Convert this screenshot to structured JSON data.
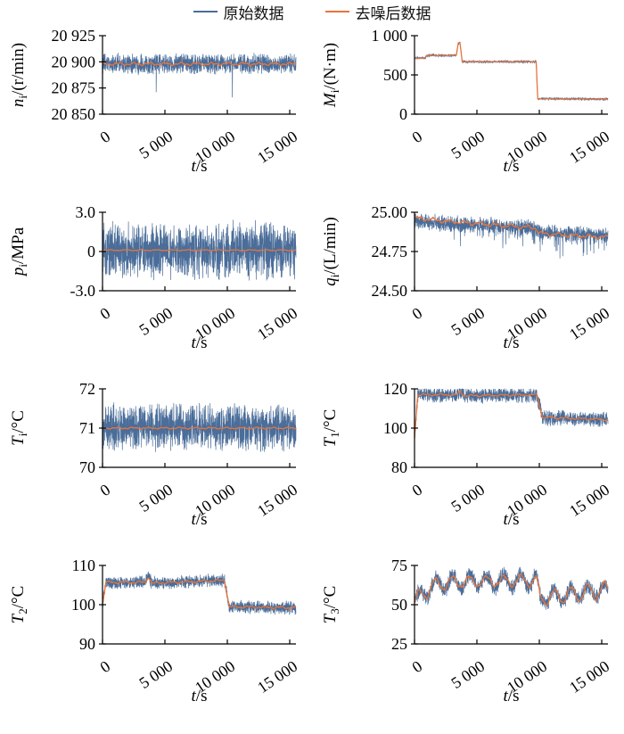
{
  "legend": {
    "raw_label": "原始数据",
    "denoised_label": "去噪后数据"
  },
  "colors": {
    "raw": "#4a6d99",
    "denoised": "#e8743a",
    "axis": "#000000"
  },
  "chart_data": {
    "type": "line",
    "layout": "4x2-grid",
    "legend_position": "top-center",
    "series_names": [
      "原始数据",
      "去噪后数据"
    ],
    "xlabel": {
      "v": "t",
      "unit": "/s"
    },
    "xlim": [
      0,
      15500
    ],
    "xticks": [
      {
        "v": 0,
        "t": "0"
      },
      {
        "v": 5000,
        "t": "5 000"
      },
      {
        "v": 10000,
        "t": "10 000"
      },
      {
        "v": 15000,
        "t": "15 000"
      }
    ],
    "charts": [
      {
        "key": "ni",
        "ylabel": {
          "v": "n",
          "sub": "i",
          "unit": "/(r/min)"
        },
        "ylim": [
          20850,
          20925
        ],
        "yticks": [
          {
            "v": 20850,
            "t": "20 850"
          },
          {
            "v": 20875,
            "t": "20 875"
          },
          {
            "v": 20900,
            "t": "20 900"
          },
          {
            "v": 20925,
            "t": "20 925"
          }
        ],
        "raw": {
          "base": [
            [
              0,
              20898
            ],
            [
              15500,
              20898
            ]
          ],
          "noise": 11,
          "spikes": [
            [
              4300,
              20871
            ],
            [
              10400,
              20866
            ]
          ]
        },
        "denoised": {
          "base": [
            [
              0,
              20898
            ],
            [
              15500,
              20898
            ]
          ],
          "wobble": 1.3
        }
      },
      {
        "key": "Mi",
        "ylabel": {
          "v": "M",
          "sub": "i",
          "unit": "/(N·m)"
        },
        "ylim": [
          0,
          1000
        ],
        "yticks": [
          {
            "v": 0,
            "t": "0"
          },
          {
            "v": 500,
            "t": "500"
          },
          {
            "v": 1000,
            "t": "1 000"
          }
        ],
        "raw": {
          "base": [
            [
              0,
              715
            ],
            [
              850,
              715
            ],
            [
              980,
              748
            ],
            [
              3350,
              748
            ],
            [
              3500,
              905
            ],
            [
              3650,
              905
            ],
            [
              3820,
              668
            ],
            [
              9750,
              668
            ],
            [
              9870,
              196
            ],
            [
              15500,
              193
            ]
          ],
          "noise": 22
        },
        "denoised": {
          "base": [
            [
              0,
              715
            ],
            [
              850,
              715
            ],
            [
              980,
              748
            ],
            [
              3350,
              748
            ],
            [
              3500,
              905
            ],
            [
              3650,
              905
            ],
            [
              3820,
              668
            ],
            [
              9750,
              668
            ],
            [
              9870,
              196
            ],
            [
              15500,
              193
            ]
          ],
          "wobble": 3
        }
      },
      {
        "key": "pi",
        "ylabel": {
          "v": "p",
          "sub": "i",
          "unit": "/MPa"
        },
        "ylim": [
          -3,
          3
        ],
        "yticks": [
          {
            "v": -3,
            "t": "-3.0"
          },
          {
            "v": 0,
            "t": "0"
          },
          {
            "v": 3,
            "t": "3.0"
          }
        ],
        "raw": {
          "base": [
            [
              0,
              0.08
            ],
            [
              15500,
              0.08
            ]
          ],
          "noise": 2.4
        },
        "denoised": {
          "base": [
            [
              0,
              0.1
            ],
            [
              15500,
              0.1
            ]
          ],
          "wobble": 0.04
        }
      },
      {
        "key": "qi",
        "ylabel": {
          "v": "q",
          "sub": "i",
          "unit": "/(L/min)"
        },
        "ylim": [
          24.5,
          25.0
        ],
        "yticks": [
          {
            "v": 24.5,
            "t": "24.50"
          },
          {
            "v": 24.75,
            "t": "24.75"
          },
          {
            "v": 25.0,
            "t": "25.00"
          }
        ],
        "raw": {
          "base": [
            [
              0,
              24.945
            ],
            [
              2600,
              24.925
            ],
            [
              9750,
              24.9
            ],
            [
              9960,
              24.87
            ],
            [
              15500,
              24.855
            ]
          ],
          "noise": 0.06,
          "spikeRate": 0.05,
          "spikeAmp": -0.12,
          "spikeStart": 2600
        },
        "denoised": {
          "base": [
            [
              0,
              24.965
            ],
            [
              2200,
              24.945
            ],
            [
              9700,
              24.9
            ],
            [
              10050,
              24.865
            ],
            [
              15500,
              24.84
            ]
          ],
          "wobble": 0.012
        }
      },
      {
        "key": "Ti",
        "ylabel": {
          "v": "T",
          "sub": "i",
          "unit": "/°C"
        },
        "ylim": [
          70,
          72
        ],
        "yticks": [
          {
            "v": 70,
            "t": "70"
          },
          {
            "v": 71,
            "t": "71"
          },
          {
            "v": 72,
            "t": "72"
          }
        ],
        "raw": {
          "base": [
            [
              0,
              71.03
            ],
            [
              15500,
              71.03
            ]
          ],
          "noise": 0.68
        },
        "denoised": {
          "base": [
            [
              0,
              71.0
            ],
            [
              15500,
              71.0
            ]
          ],
          "wobble": 0.02
        }
      },
      {
        "key": "T1",
        "ylabel": {
          "v": "T",
          "sub": "1",
          "unit": "/°C"
        },
        "ylim": [
          80,
          120
        ],
        "yticks": [
          {
            "v": 80,
            "t": "80"
          },
          {
            "v": 100,
            "t": "100"
          },
          {
            "v": 120,
            "t": "120"
          }
        ],
        "raw": {
          "base": [
            [
              0,
              95
            ],
            [
              260,
              117
            ],
            [
              3450,
              117
            ],
            [
              3650,
              119
            ],
            [
              3950,
              116.5
            ],
            [
              9800,
              117
            ],
            [
              10250,
              105.5
            ],
            [
              15500,
              104.3
            ]
          ],
          "noise": 4.5
        },
        "denoised": {
          "base": [
            [
              0,
              95
            ],
            [
              260,
              117
            ],
            [
              3450,
              117
            ],
            [
              3650,
              119
            ],
            [
              3950,
              116.5
            ],
            [
              9800,
              117
            ],
            [
              10250,
              105.5
            ],
            [
              15500,
              104.3
            ]
          ],
          "wobble": 0.5
        }
      },
      {
        "key": "T2",
        "ylabel": {
          "v": "T",
          "sub": "2",
          "unit": "/°C"
        },
        "ylim": [
          90,
          110
        ],
        "yticks": [
          {
            "v": 90,
            "t": "90"
          },
          {
            "v": 100,
            "t": "100"
          },
          {
            "v": 110,
            "t": "110"
          }
        ],
        "raw": {
          "base": [
            [
              0,
              100
            ],
            [
              280,
              105.7
            ],
            [
              3450,
              105.7
            ],
            [
              3650,
              107.2
            ],
            [
              3950,
              105.5
            ],
            [
              9780,
              106.2
            ],
            [
              10150,
              99.5
            ],
            [
              15500,
              99.2
            ]
          ],
          "noise": 1.9
        },
        "denoised": {
          "base": [
            [
              0,
              100
            ],
            [
              280,
              105.7
            ],
            [
              3450,
              105.7
            ],
            [
              3650,
              107.2
            ],
            [
              3950,
              105.5
            ],
            [
              9780,
              106.2
            ],
            [
              10150,
              99.5
            ],
            [
              15500,
              99.2
            ]
          ],
          "wobble": 0.3
        }
      },
      {
        "key": "T3",
        "ylabel": {
          "v": "T",
          "sub": "3",
          "unit": "/°C"
        },
        "ylim": [
          25,
          75
        ],
        "yticks": [
          {
            "v": 25,
            "t": "25"
          },
          {
            "v": 50,
            "t": "50"
          },
          {
            "v": 75,
            "t": "75"
          }
        ],
        "raw": {
          "base": [
            [
              0,
              52
            ],
            [
              1400,
              62
            ],
            [
              3000,
              64.5
            ],
            [
              9750,
              65.5
            ],
            [
              10050,
              54
            ],
            [
              12500,
              56.5
            ],
            [
              15500,
              59.5
            ]
          ],
          "noise": 6,
          "osc": {
            "amp": 4.2,
            "period": 1350
          }
        },
        "denoised": {
          "base": [
            [
              0,
              52
            ],
            [
              1400,
              62
            ],
            [
              3000,
              64.5
            ],
            [
              9750,
              65.5
            ],
            [
              10050,
              54
            ],
            [
              12500,
              56.5
            ],
            [
              15500,
              59.5
            ]
          ],
          "wobble": 1.4,
          "osc": {
            "amp": 4.2,
            "period": 1350
          }
        }
      }
    ]
  }
}
